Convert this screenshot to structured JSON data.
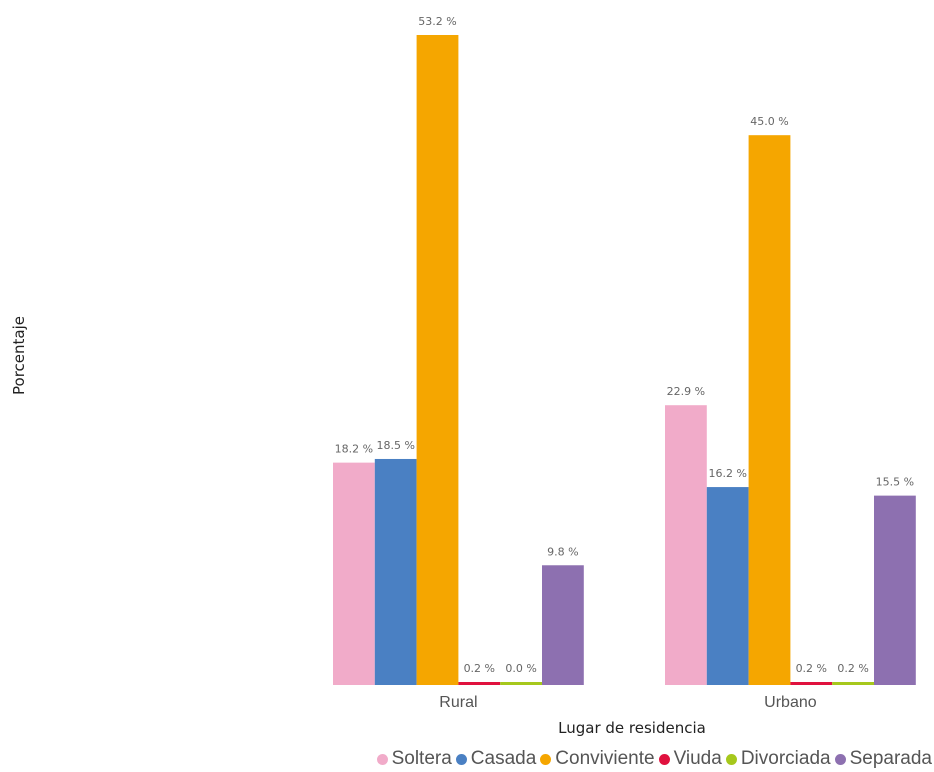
{
  "chart_data": {
    "type": "bar",
    "xlabel": "Lugar de residencia",
    "ylabel": "Porcentaje",
    "categories": [
      "Rural",
      "Urbano"
    ],
    "series": [
      {
        "name": "Soltera",
        "color": "#f1abc9",
        "values": [
          18.2,
          22.9
        ]
      },
      {
        "name": "Casada",
        "color": "#4a80c3",
        "values": [
          18.5,
          16.2
        ]
      },
      {
        "name": "Conviviente",
        "color": "#f5a600",
        "values": [
          53.2,
          45.0
        ]
      },
      {
        "name": "Viuda",
        "color": "#e0113e",
        "values": [
          0.2,
          0.2
        ]
      },
      {
        "name": "Divorciada",
        "color": "#a6c81c",
        "values": [
          0.0,
          0.2
        ]
      },
      {
        "name": "Separada",
        "color": "#8d70b0",
        "values": [
          9.8,
          15.5
        ]
      }
    ],
    "data_labels": [
      [
        "18.2 %",
        "22.9 %"
      ],
      [
        "18.5 %",
        "16.2 %"
      ],
      [
        "53.2 %",
        "45.0 %"
      ],
      [
        "0.2 %",
        "0.2 %"
      ],
      [
        "0.0 %",
        "0.2 %"
      ],
      [
        "9.8 %",
        "15.5 %"
      ]
    ],
    "ylim": [
      0,
      53.2
    ],
    "grid": false,
    "legend_position": "bottom-right"
  }
}
